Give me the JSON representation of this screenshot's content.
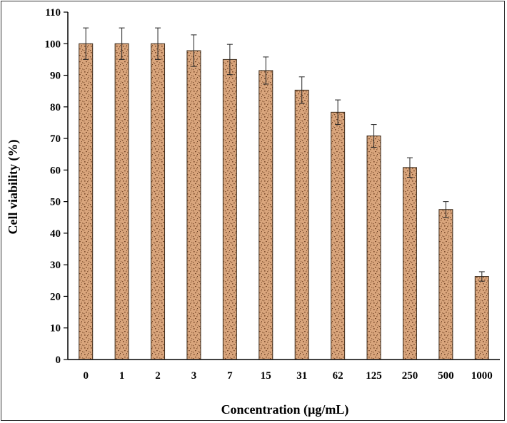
{
  "chart_data": {
    "type": "bar",
    "title": "",
    "xlabel": "Concentration (µg/mL)",
    "ylabel": "Cell viability (%)",
    "categories": [
      "0",
      "1",
      "2",
      "3",
      "7",
      "15",
      "31",
      "62",
      "125",
      "250",
      "500",
      "1000"
    ],
    "values": [
      100,
      100,
      100,
      97.8,
      95,
      91.5,
      85.3,
      78.3,
      70.8,
      60.8,
      47.5,
      26.3
    ],
    "errors": [
      5,
      5,
      5,
      5,
      4.8,
      4.3,
      4.2,
      3.9,
      3.6,
      3.1,
      2.5,
      1.5
    ],
    "ylim": [
      0,
      110
    ],
    "yticks": [
      0,
      10,
      20,
      30,
      40,
      50,
      60,
      70,
      80,
      90,
      100,
      110
    ],
    "grid": false,
    "bar_color": "#d9a57c",
    "bar_speckle_color": "#7a4a2a",
    "bar_edge_color": "#3b2a1a"
  }
}
